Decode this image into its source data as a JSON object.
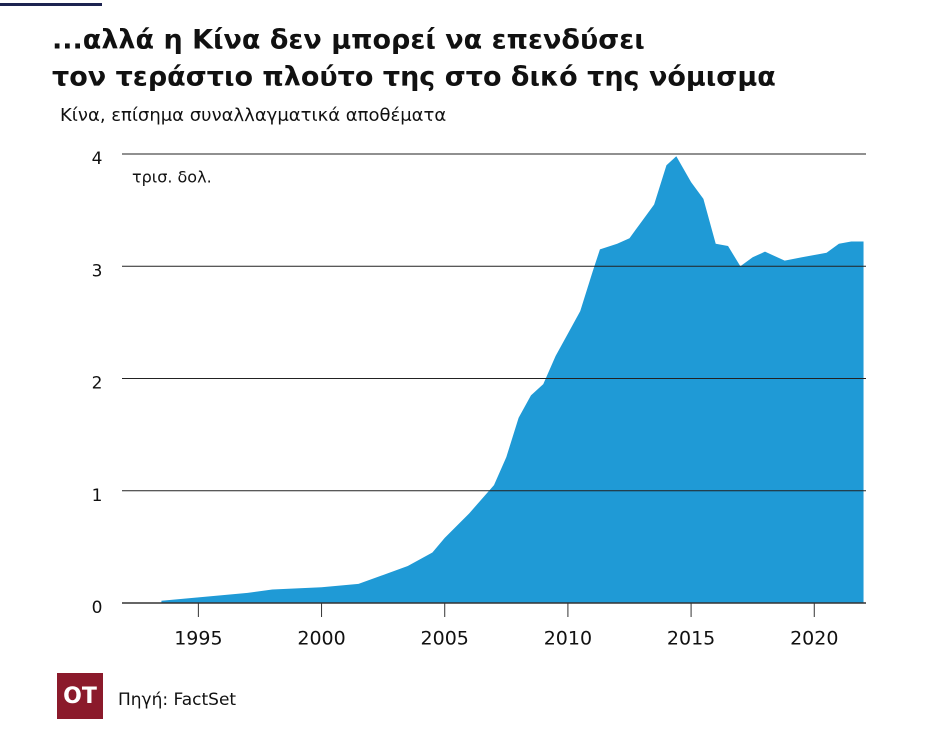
{
  "chart_data": {
    "type": "area",
    "title": [
      "...αλλά η Κίνα δεν μπορεί να επενδύσει",
      "τον τεράστιο πλούτο της στο δικό της νόμισμα"
    ],
    "subtitle": "Κίνα, επίσημα συναλλαγματικά αποθέματα",
    "unit": "τρισ. δολ.",
    "source": "Πηγή: FactSet",
    "logo": "OT",
    "color": "#1f9ad6",
    "x": [
      1993.5,
      1995,
      1997,
      1998,
      2000,
      2001.5,
      2002.5,
      2003.5,
      2004.5,
      2005,
      2006,
      2007,
      2007.5,
      2008,
      2008.5,
      2009,
      2009.5,
      2010,
      2010.5,
      2011,
      2011.3,
      2012,
      2012.5,
      2013,
      2013.5,
      2014,
      2014.4,
      2015,
      2015.5,
      2016,
      2016.5,
      2017,
      2017.5,
      2018,
      2018.8,
      2019.5,
      2020,
      2020.5,
      2021,
      2021.5,
      2022
    ],
    "values": [
      0.02,
      0.05,
      0.09,
      0.12,
      0.14,
      0.17,
      0.25,
      0.33,
      0.45,
      0.58,
      0.8,
      1.05,
      1.3,
      1.65,
      1.85,
      1.95,
      2.2,
      2.4,
      2.6,
      2.95,
      3.15,
      3.2,
      3.25,
      3.4,
      3.55,
      3.9,
      3.98,
      3.75,
      3.6,
      3.2,
      3.18,
      3.0,
      3.08,
      3.13,
      3.05,
      3.08,
      3.1,
      3.12,
      3.2,
      3.22,
      3.22
    ],
    "xlim": [
      1991.9,
      2022.1
    ],
    "xticks": [
      1995,
      2000,
      2005,
      2010,
      2015,
      2020
    ],
    "ylim": [
      0,
      4
    ],
    "yticks": [
      0,
      1,
      2,
      3,
      4
    ],
    "grid": true
  }
}
